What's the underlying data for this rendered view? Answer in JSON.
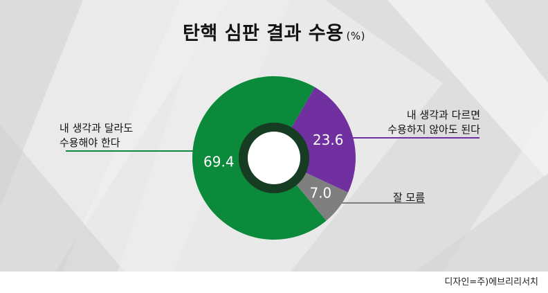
{
  "title": {
    "main": "탄핵 심판 결과 수용",
    "unit": "(%)"
  },
  "credit": "디자인=주)에브리리서치",
  "labels": {
    "green_line1": "내 생각과 달라도",
    "green_line2": "수용해야 한다",
    "purple_line1": "내 생각과 다르면",
    "purple_line2": "수용하지 않아도 된다",
    "gray": "잘 모름"
  },
  "colors": {
    "green": "#0b8a3c",
    "purple": "#7030a0",
    "gray": "#7f7f7f",
    "inner_ring": "#163d22"
  },
  "chart_data": {
    "type": "pie",
    "title": "탄핵 심판 결과 수용",
    "unit": "%",
    "slices": [
      {
        "label": "내 생각과 다르면 수용하지 않아도 된다",
        "value": 23.6,
        "display": "23.6",
        "color": "#7030a0"
      },
      {
        "label": "잘 모름",
        "value": 7.0,
        "display": "7.0",
        "color": "#7f7f7f"
      },
      {
        "label": "내 생각과 달라도 수용해야 한다",
        "value": 69.4,
        "display": "69.4",
        "color": "#0b8a3c"
      }
    ]
  }
}
